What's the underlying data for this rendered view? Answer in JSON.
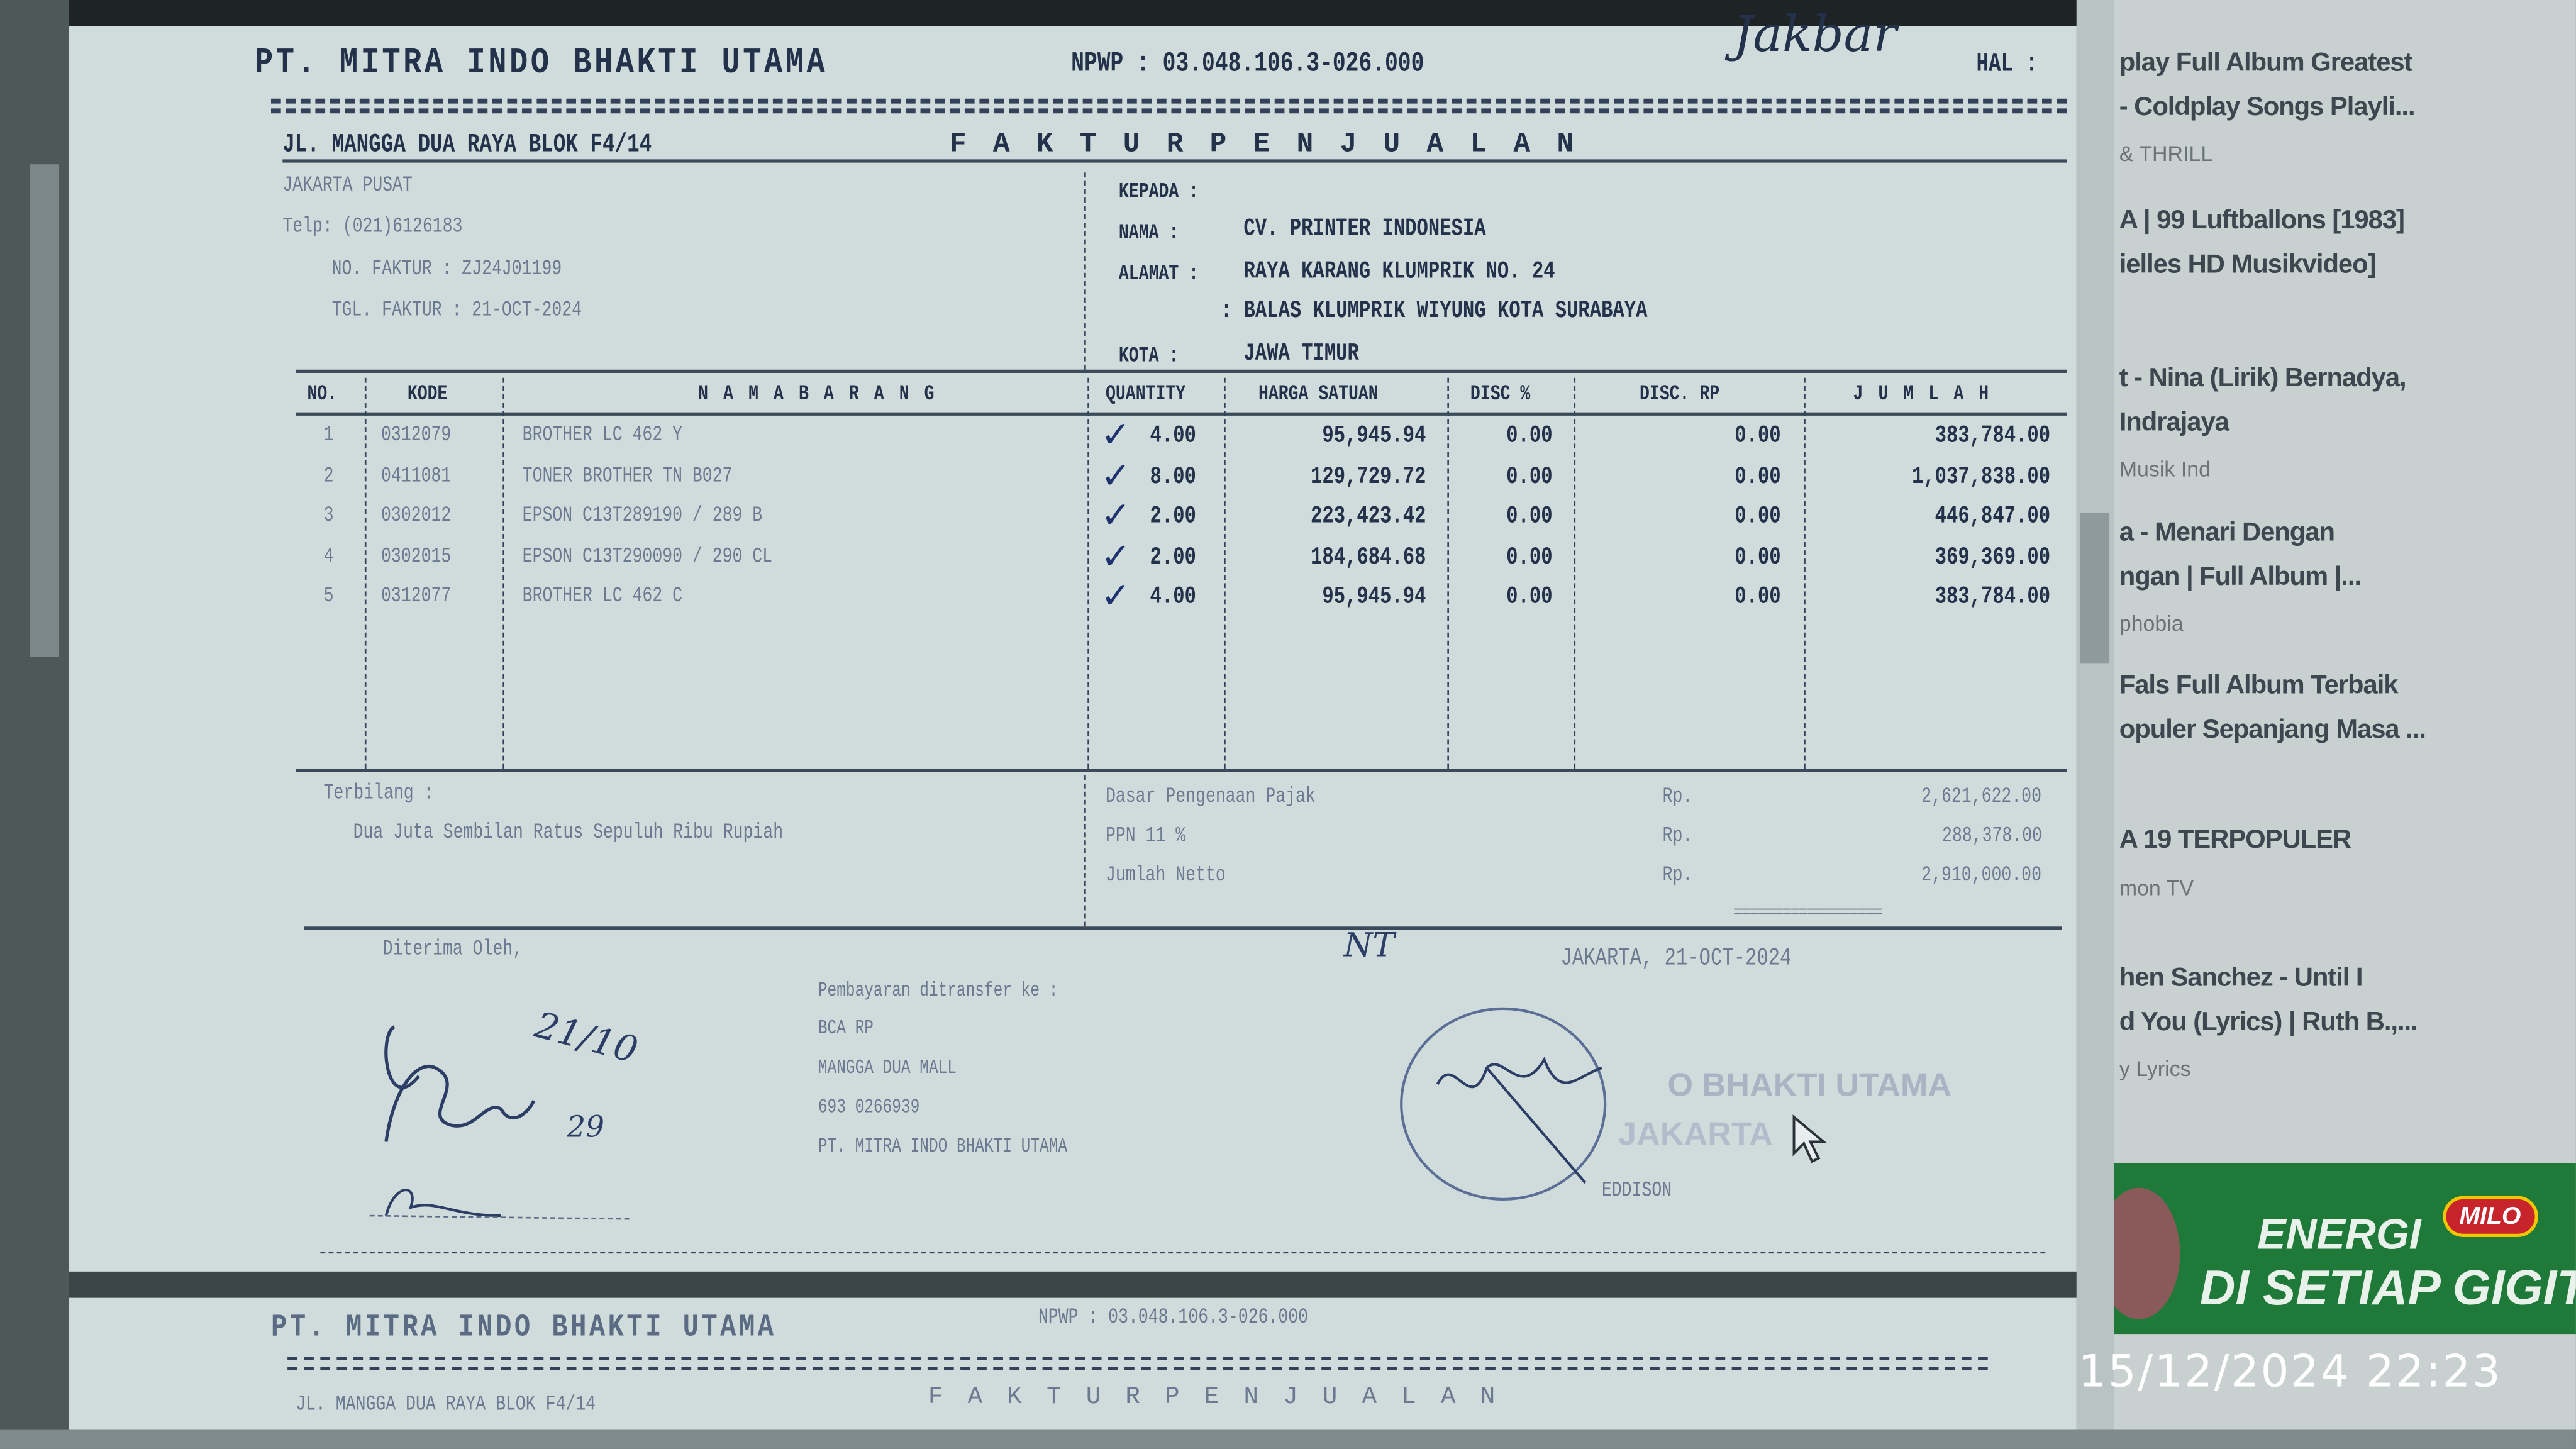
{
  "invoice": {
    "company": "PT. MITRA INDO BHAKTI UTAMA",
    "npwp": "NPWP : 03.048.106.3-026.000",
    "handwritten_note": "Jakbar",
    "hal": "HAL :",
    "address_line1": "JL. MANGGA DUA RAYA BLOK F4/14",
    "title": "F A K T U R   P E N J U A L A N",
    "city": "JAKARTA PUSAT",
    "telp": "Telp: (021)6126183",
    "no_faktur": "NO. FAKTUR : ZJ24J01199",
    "tgl_faktur": "TGL. FAKTUR : 21-OCT-2024",
    "customer": {
      "kepada": "KEPADA :",
      "nama_label": "NAMA   :",
      "nama": "CV. PRINTER INDONESIA",
      "alamat_label": "ALAMAT :",
      "alamat1": "RAYA KARANG KLUMPRIK NO. 24",
      "alamat2": ": BALAS KLUMPRIK WIYUNG KOTA SURABAYA",
      "kota_label": "KOTA   :",
      "kota": "JAWA TIMUR"
    },
    "columns": [
      "NO.",
      "KODE",
      "N A M A   B A R A N G",
      "QUANTITY",
      "HARGA SATUAN",
      "DISC %",
      "DISC. RP",
      "J U M L A H"
    ],
    "rows": [
      {
        "no": "1",
        "kode": "0312079",
        "nama": "BROTHER LC 462 Y",
        "qty": "4.00",
        "harga": "95,945.94",
        "disc_pct": "0.00",
        "disc_rp": "0.00",
        "jumlah": "383,784.00"
      },
      {
        "no": "2",
        "kode": "0411081",
        "nama": "TONER BROTHER TN B027",
        "qty": "8.00",
        "harga": "129,729.72",
        "disc_pct": "0.00",
        "disc_rp": "0.00",
        "jumlah": "1,037,838.00"
      },
      {
        "no": "3",
        "kode": "0302012",
        "nama": "EPSON C13T289190 / 289 B",
        "qty": "2.00",
        "harga": "223,423.42",
        "disc_pct": "0.00",
        "disc_rp": "0.00",
        "jumlah": "446,847.00"
      },
      {
        "no": "4",
        "kode": "0302015",
        "nama": "EPSON C13T290090 / 290 CL",
        "qty": "2.00",
        "harga": "184,684.68",
        "disc_pct": "0.00",
        "disc_rp": "0.00",
        "jumlah": "369,369.00"
      },
      {
        "no": "5",
        "kode": "0312077",
        "nama": "BROTHER LC 462 C",
        "qty": "4.00",
        "harga": "95,945.94",
        "disc_pct": "0.00",
        "disc_rp": "0.00",
        "jumlah": "383,784.00"
      }
    ],
    "terbilang_label": "Terbilang :",
    "terbilang": "Dua Juta Sembilan Ratus Sepuluh Ribu Rupiah",
    "totals": [
      {
        "label": "Dasar Pengenaan Pajak",
        "currency": "Rp.",
        "value": "2,621,622.00"
      },
      {
        "label": "PPN 11 %",
        "currency": "Rp.",
        "value": "288,378.00"
      },
      {
        "label": "Jumlah Netto",
        "currency": "Rp.",
        "value": "2,910,000.00"
      }
    ],
    "double_underline": "==================",
    "diterima_oleh": "Diterima Oleh,",
    "payment": [
      "Pembayaran ditransfer ke :",
      "BCA RP",
      "MANGGA DUA MALL",
      "693 0266939",
      "PT. MITRA INDO BHAKTI UTAMA"
    ],
    "place_date": "JAKARTA,   21-OCT-2024",
    "stamp_line1": "O BHAKTI UTAMA",
    "stamp_line2": "JAKARTA",
    "signer": "EDDISON",
    "handwritten_date": "21/10",
    "handwritten_day": "29",
    "handwritten_initials": "NT"
  },
  "next_page": {
    "company": "PT. MITRA INDO BHAKTI UTAMA",
    "npwp": "NPWP : 03.048.106.3-026.000",
    "address_line1": "JL. MANGGA DUA RAYA BLOK F4/14",
    "title": "F A K T U R   P E N J U A L A N"
  },
  "sidebar": {
    "items": [
      {
        "title1": "play Full Album Greatest",
        "title2": "- Coldplay Songs Playli...",
        "channel": "& THRILL"
      },
      {
        "title1": "A | 99 Luftballons [1983]",
        "title2": "ielles HD Musikvideo]",
        "channel": ""
      },
      {
        "title1": "t - Nina (Lirik) Bernadya,",
        "title2": "Indrajaya",
        "channel": "Musik Ind"
      },
      {
        "title1": "a - Menari Dengan",
        "title2": "ngan | Full Album |...",
        "channel": "phobia"
      },
      {
        "title1": "Fals Full Album Terbaik",
        "title2": "opuler Sepanjang Masa ...",
        "channel": ""
      },
      {
        "title1": "A 19 TERPOPULER",
        "title2": "",
        "channel": "mon TV"
      },
      {
        "title1": "hen Sanchez - Until I",
        "title2": "d You (Lyrics) | Ruth B.,...",
        "channel": "y Lyrics"
      }
    ],
    "ad": {
      "line1": "ENERGI",
      "brand": "MILO",
      "line2": "DI SETIAP GIGITAN",
      "color": "#1f7a3a"
    }
  },
  "photo_timestamp": "15/12/2024  22:23"
}
